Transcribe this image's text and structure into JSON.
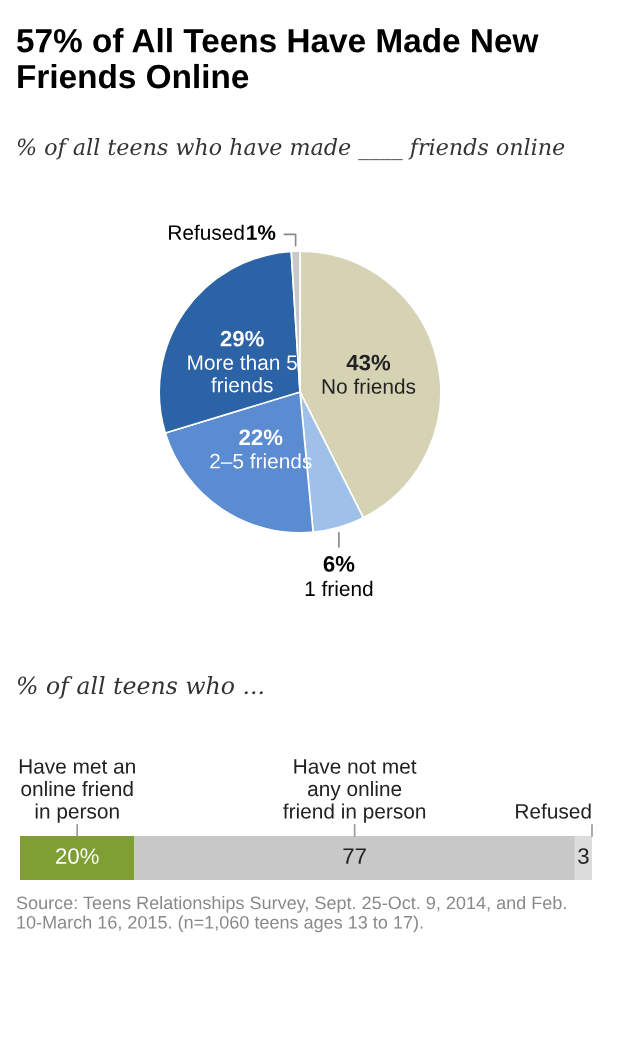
{
  "chart_data": [
    {
      "type": "pie",
      "title": "57% of All Teens Have Made New Friends Online",
      "subtitle": "% of all teens who have made ____ friends online",
      "categories": [
        "No friends",
        "1 friend",
        "2–5 friends",
        "More than 5\nfriends",
        "Refused"
      ],
      "values": [
        43,
        6,
        22,
        29,
        1
      ],
      "value_labels": [
        "43%",
        "6%",
        "22%",
        "29%",
        "1%"
      ],
      "colors": [
        "#d6d3b5",
        "#9fc0e8",
        "#5b8bd0",
        "#2c62a6",
        "#c8c8c8"
      ],
      "legend": false
    },
    {
      "type": "bar",
      "orientation": "horizontal",
      "stacked": true,
      "subtitle": "% of all teens who ...",
      "categories": [
        null
      ],
      "series": [
        {
          "name": "Have met an\nonline friend\nin person",
          "color": "#7f9f35",
          "values": [
            20
          ],
          "value_labels": [
            "20%"
          ]
        },
        {
          "name": "Have not met\nany online\nfriend in person",
          "color": "#c8c8c8",
          "values": [
            77
          ],
          "value_labels": [
            "77"
          ]
        },
        {
          "name": "Refused",
          "color": "#dcdcdc",
          "values": [
            3
          ],
          "value_labels": [
            "3"
          ]
        }
      ],
      "legend": false,
      "annotations": [
        "Source: Teens Relationships Survey, Sept. 25-Oct. 9, 2014, and Feb. 10-March 16, 2015. (n=1,060 teens ages 13 to 17)."
      ]
    }
  ]
}
